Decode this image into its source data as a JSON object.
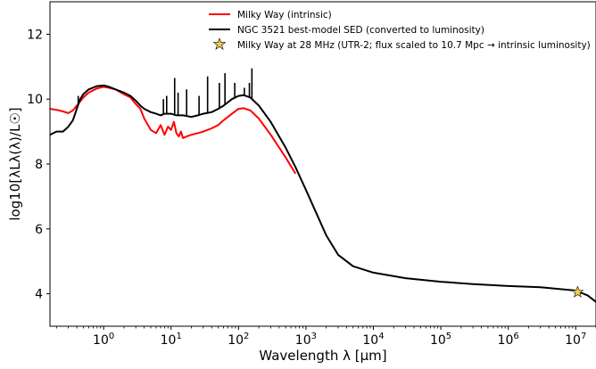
{
  "chart_data": {
    "type": "line",
    "title": "",
    "xlabel": "Wavelength λ [μm]",
    "ylabel": "log10[λLλ(λ)/L☉]",
    "xscale": "log",
    "xlim": [
      0.16,
      20000000
    ],
    "ylim": [
      3.0,
      13.0
    ],
    "x_ticks": [
      {
        "value": 1,
        "label": "10^0"
      },
      {
        "value": 10,
        "label": "10^1"
      },
      {
        "value": 100,
        "label": "10^2"
      },
      {
        "value": 1000,
        "label": "10^3"
      },
      {
        "value": 10000,
        "label": "10^4"
      },
      {
        "value": 100000,
        "label": "10^5"
      },
      {
        "value": 1000000,
        "label": "10^6"
      },
      {
        "value": 10000000,
        "label": "10^7"
      }
    ],
    "y_ticks": [
      4,
      6,
      8,
      10,
      12
    ],
    "grid": false,
    "legend_position": "top-right",
    "series": [
      {
        "name": "Milky Way (intrinsic)",
        "color": "#ff0000",
        "style": "line",
        "x": [
          0.16,
          0.2,
          0.25,
          0.3,
          0.35,
          0.4,
          0.5,
          0.6,
          0.8,
          1.0,
          1.2,
          1.5,
          2.0,
          2.5,
          3.0,
          3.5,
          4.0,
          5.0,
          6.0,
          7.0,
          8.0,
          9.0,
          10.0,
          11.0,
          12.0,
          13.0,
          14.0,
          15.0,
          17.0,
          20.0,
          25.0,
          30.0,
          40.0,
          50.0,
          60.0,
          80.0,
          100.0,
          120.0,
          150.0,
          200.0,
          300.0,
          500.0,
          700.0
        ],
        "y": [
          9.7,
          9.67,
          9.62,
          9.57,
          9.65,
          9.8,
          10.05,
          10.2,
          10.33,
          10.38,
          10.35,
          10.3,
          10.15,
          10.05,
          9.85,
          9.7,
          9.4,
          9.05,
          8.95,
          9.2,
          8.9,
          9.15,
          9.05,
          9.3,
          8.95,
          8.85,
          9.0,
          8.8,
          8.85,
          8.9,
          8.95,
          9.0,
          9.1,
          9.2,
          9.35,
          9.55,
          9.7,
          9.72,
          9.65,
          9.4,
          8.9,
          8.2,
          7.7
        ]
      },
      {
        "name": "NGC 3521 best-model SED (converted to luminosity)",
        "color": "#000000",
        "style": "line",
        "x": [
          0.16,
          0.2,
          0.25,
          0.3,
          0.35,
          0.4,
          0.45,
          0.5,
          0.6,
          0.8,
          1.0,
          1.2,
          1.5,
          2.0,
          2.5,
          3.0,
          3.5,
          4.0,
          5.0,
          6.0,
          7.0,
          8.0,
          10.0,
          12.0,
          15.0,
          20.0,
          25.0,
          30.0,
          40.0,
          50.0,
          60.0,
          80.0,
          100.0,
          120.0,
          150.0,
          200.0,
          300.0,
          500.0,
          700.0,
          1000.0,
          2000.0,
          3000.0,
          5000.0,
          10000.0,
          30000.0,
          100000.0,
          300000.0,
          1000000.0,
          3000000.0,
          10000000.0,
          15000000.0,
          20000000.0
        ],
        "y": [
          8.9,
          9.0,
          9.0,
          9.15,
          9.35,
          9.7,
          10.0,
          10.15,
          10.3,
          10.4,
          10.42,
          10.38,
          10.3,
          10.2,
          10.1,
          9.95,
          9.8,
          9.7,
          9.6,
          9.55,
          9.5,
          9.55,
          9.55,
          9.5,
          9.5,
          9.45,
          9.5,
          9.55,
          9.6,
          9.7,
          9.8,
          10.0,
          10.1,
          10.12,
          10.05,
          9.8,
          9.3,
          8.5,
          7.9,
          7.2,
          5.8,
          5.2,
          4.85,
          4.65,
          4.48,
          4.37,
          4.3,
          4.24,
          4.2,
          4.1,
          3.95,
          3.75
        ]
      }
    ],
    "spikes": {
      "color": "#000000",
      "x": [
        0.42,
        7.7,
        8.6,
        11.3,
        12.7,
        17.0,
        26.0,
        34.8,
        52.0,
        63.0,
        88.0,
        122.0,
        145.0,
        158.0
      ],
      "y": [
        10.1,
        10.0,
        10.1,
        10.65,
        10.2,
        10.3,
        10.1,
        10.7,
        10.5,
        10.8,
        10.5,
        10.35,
        10.5,
        10.95
      ]
    },
    "markers": [
      {
        "name": "Milky Way at 28 MHz (UTR-2; flux scaled to 10.7 Mpc → intrinsic luminosity)",
        "shape": "star",
        "color": "#f2c94c",
        "x": 10700000,
        "y": 4.05
      }
    ]
  }
}
